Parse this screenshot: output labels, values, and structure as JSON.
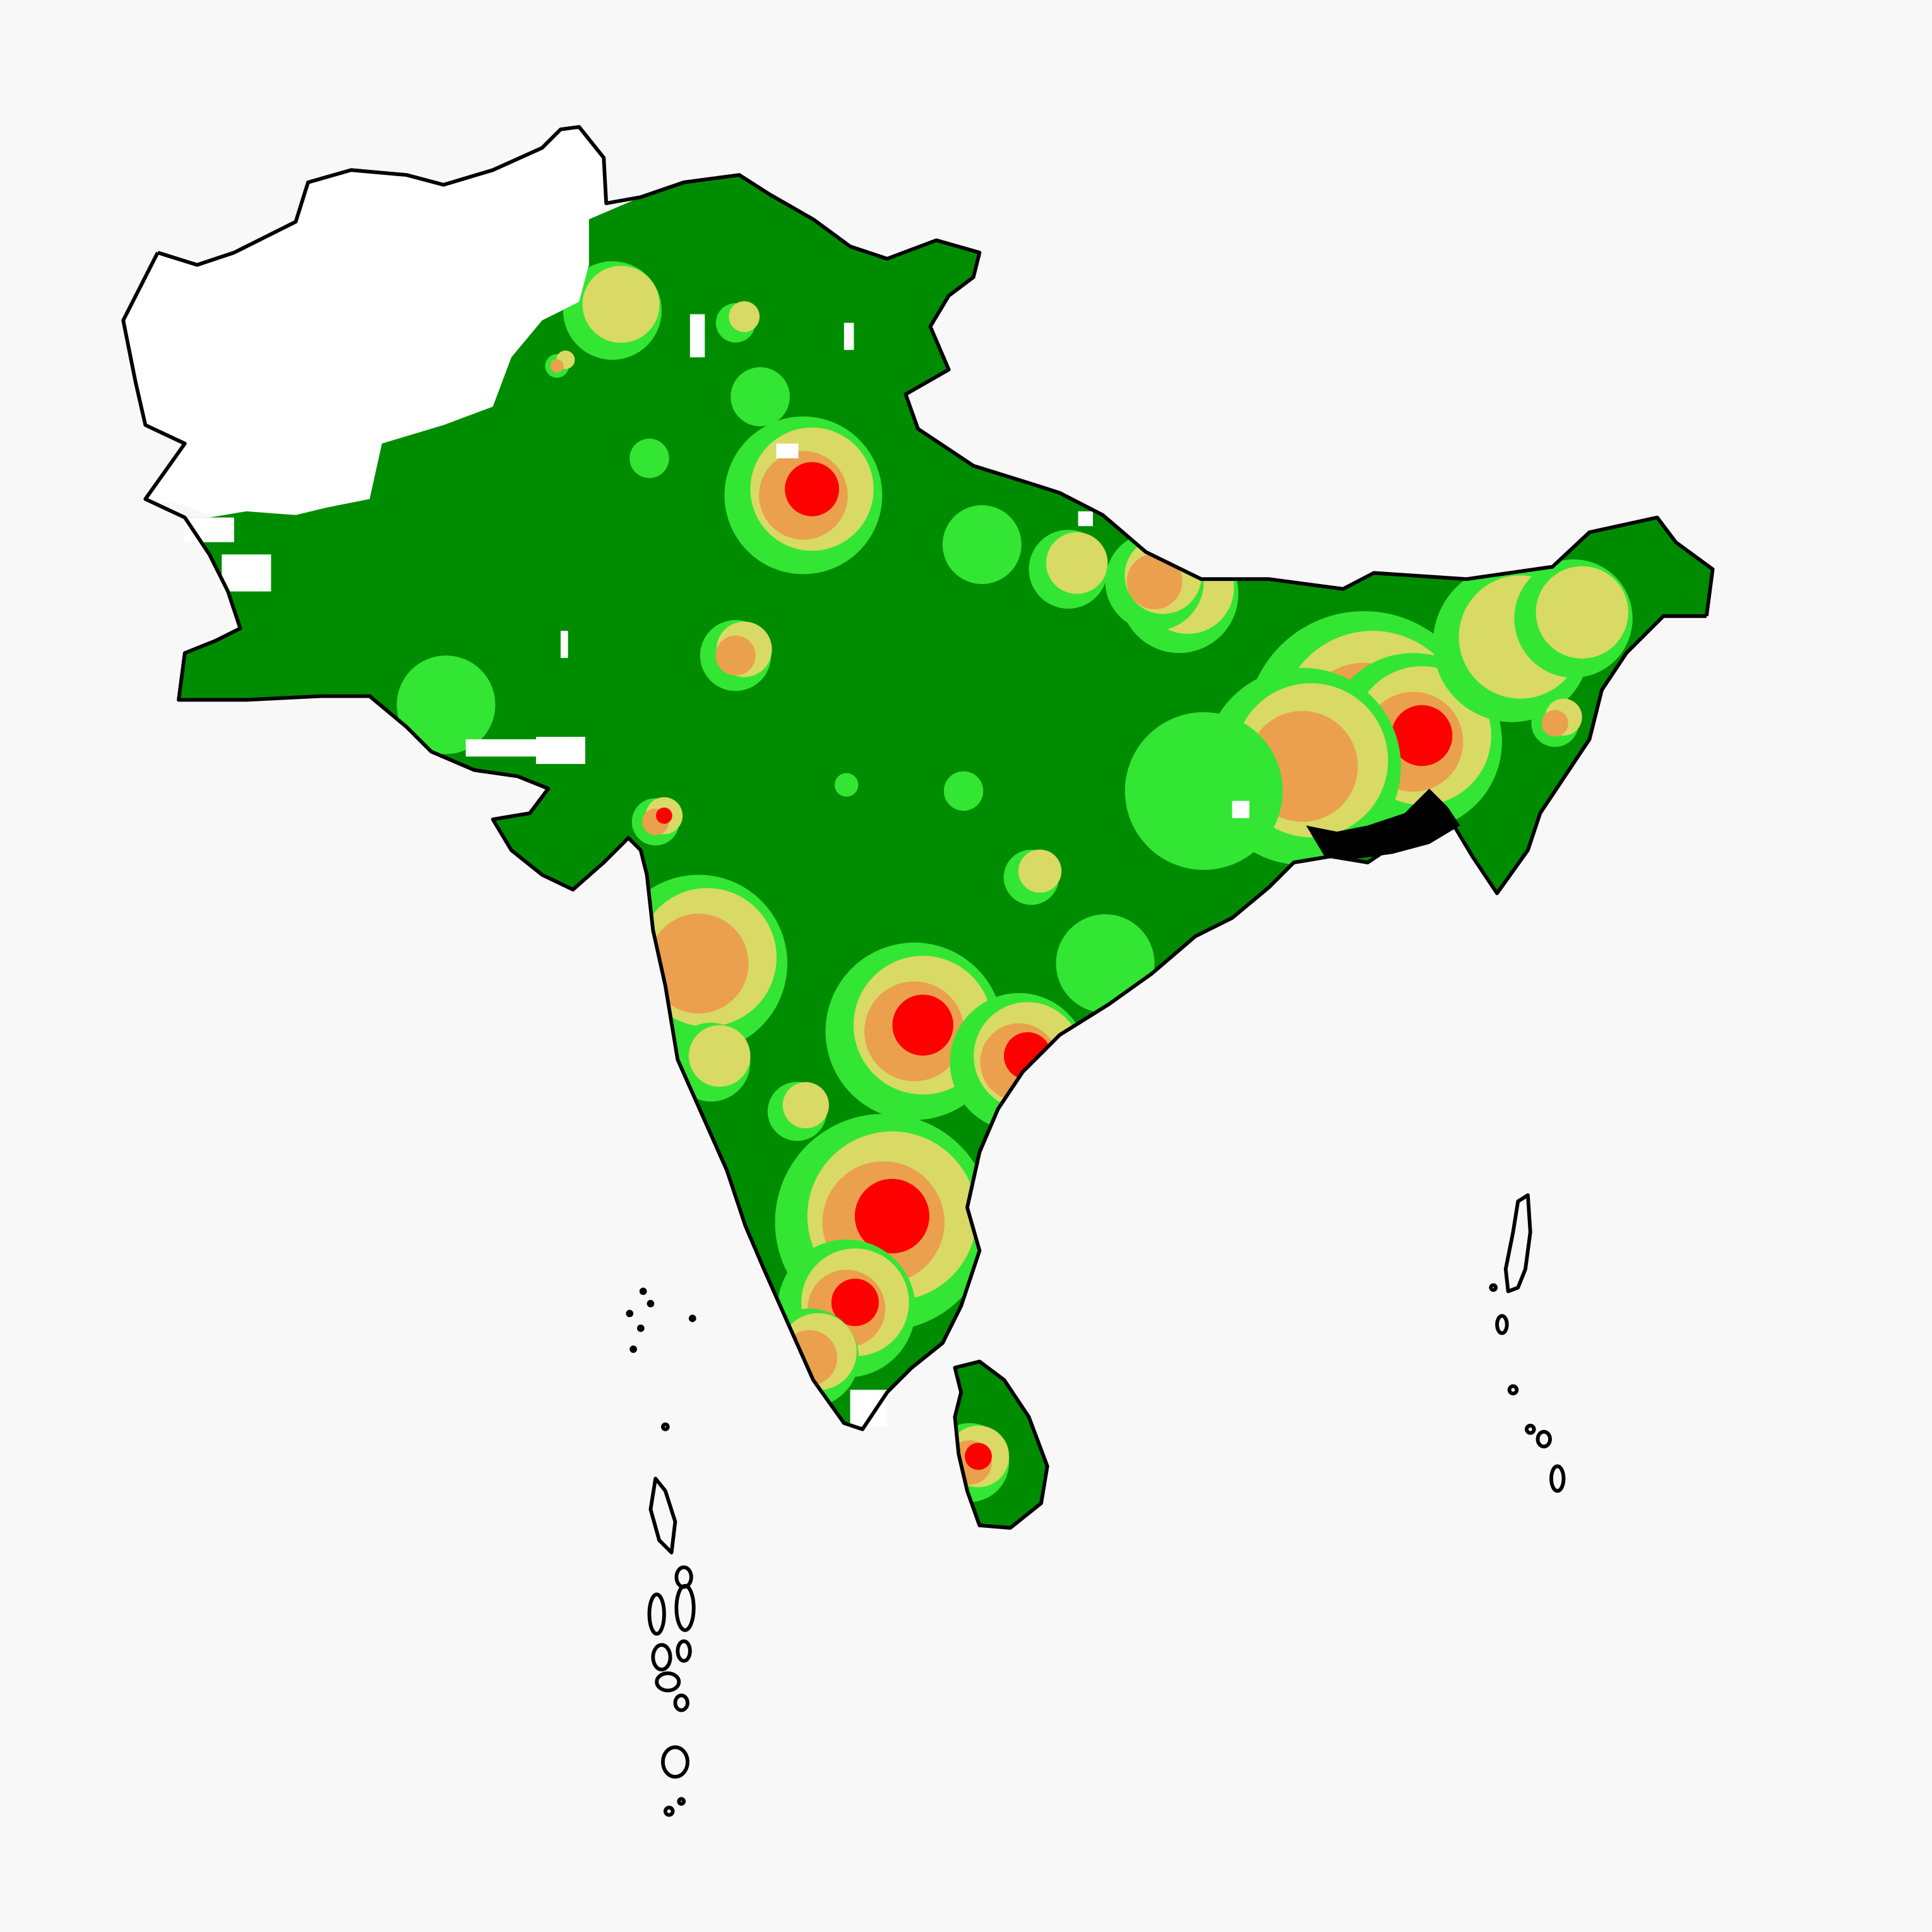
{
  "map": {
    "region": "South Asia",
    "colors": {
      "background": "#f8f8f8",
      "outline": "#000000",
      "class_very_low": "#008c00",
      "class_low": "#33e633",
      "class_medium": "#d9d966",
      "class_high": "#eba04d",
      "class_very_high": "#ff0000",
      "class_max": "#000000",
      "no_data": "#ffffff"
    }
  }
}
